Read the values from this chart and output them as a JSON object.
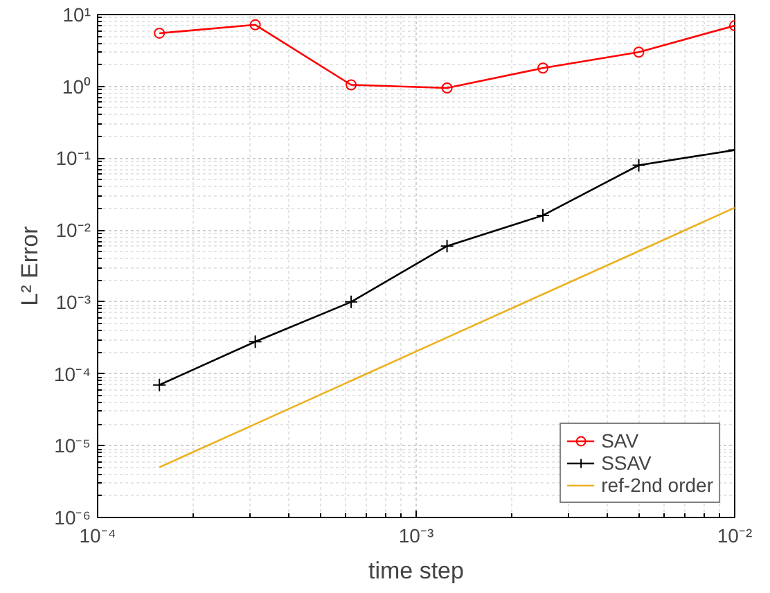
{
  "chart_data": {
    "type": "line",
    "xlabel": "time step",
    "ylabel": "L² Error",
    "log": "xy",
    "grid": true,
    "legend": "bottom right",
    "xlim": [
      0.0001,
      0.01
    ],
    "ylim": [
      1e-06,
      10
    ],
    "xticks": [
      {
        "value": 0.0001,
        "label": "10⁻⁴"
      },
      {
        "value": 0.001,
        "label": "10⁻³"
      },
      {
        "value": 0.01,
        "label": "10⁻²"
      }
    ],
    "yticks": [
      {
        "value": 1e-06,
        "label": "10⁻⁶"
      },
      {
        "value": 1e-05,
        "label": "10⁻⁵"
      },
      {
        "value": 0.0001,
        "label": "10⁻⁴"
      },
      {
        "value": 0.001,
        "label": "10⁻³"
      },
      {
        "value": 0.01,
        "label": "10⁻²"
      },
      {
        "value": 0.1,
        "label": "10⁻¹"
      },
      {
        "value": 1,
        "label": "10⁰"
      },
      {
        "value": 10,
        "label": "10¹"
      }
    ],
    "x": [
      0.00015625,
      0.0003125,
      0.000625,
      0.00125,
      0.0025,
      0.005,
      0.01
    ],
    "series": [
      {
        "name": "SAV",
        "color": "#ff0000",
        "marker": "circle",
        "values": [
          5.5,
          7.2,
          1.05,
          0.95,
          1.8,
          3.0,
          7.0
        ]
      },
      {
        "name": "SSAV",
        "color": "#000000",
        "marker": "cross",
        "values": [
          7e-05,
          0.00028,
          0.001,
          0.006,
          0.016,
          0.08,
          0.13
        ]
      },
      {
        "name": "ref-2nd order",
        "color": "#edb120",
        "marker": "none",
        "values": [
          5e-06,
          2e-05,
          8e-05,
          0.00032,
          0.00128,
          0.0051,
          0.0205
        ]
      }
    ]
  }
}
